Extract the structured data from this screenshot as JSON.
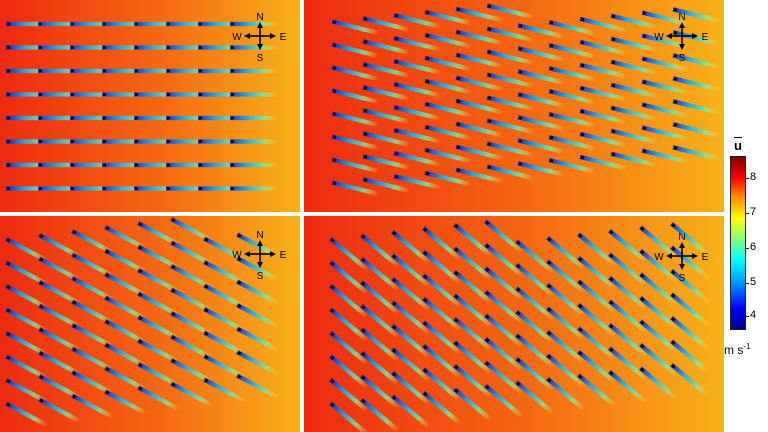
{
  "compass": {
    "north": "N",
    "south": "S",
    "east": "E",
    "west": "W"
  },
  "colorbar": {
    "title": "u",
    "ticks": [
      "8",
      "7",
      "6",
      "5",
      "4"
    ],
    "unit_base": "m s",
    "unit_exp": "-1",
    "colors": [
      "#000080",
      "#0000ff",
      "#00a0ff",
      "#00ffff",
      "#80ff80",
      "#ffff00",
      "#ff8000",
      "#ff0000",
      "#800000"
    ]
  },
  "panels": [
    {
      "rows": 8,
      "cols": 8,
      "angle": 0
    },
    {
      "rows": 8,
      "cols": 12,
      "angle": 14
    },
    {
      "rows": 8,
      "cols": 8,
      "angle": 28
    },
    {
      "rows": 8,
      "cols": 12,
      "angle": 40
    }
  ]
}
